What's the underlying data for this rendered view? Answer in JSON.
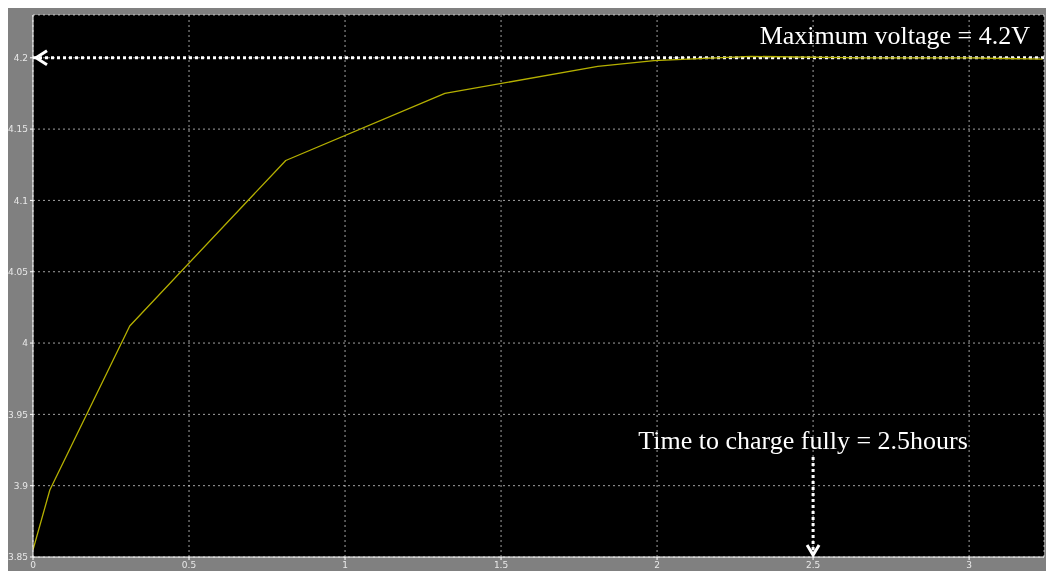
{
  "chart_data": {
    "type": "line",
    "x": [
      0,
      0.054,
      0.31,
      0.81,
      1.32,
      1.81,
      1.99,
      2.3,
      2.66,
      3.0,
      3.235
    ],
    "series": [
      {
        "color": "#b5b000",
        "values": [
          3.855,
          3.897,
          4.012,
          4.128,
          4.175,
          4.194,
          4.198,
          4.201,
          4.2,
          4.2,
          4.199
        ]
      }
    ],
    "xlim": [
      0,
      3.24
    ],
    "xticks": [
      0,
      0.5,
      1,
      1.5,
      2,
      2.5,
      3
    ],
    "ylim": [
      3.85,
      4.23
    ],
    "yticks": [
      3.85,
      3.9,
      3.95,
      4,
      4.05,
      4.1,
      4.15,
      4.2
    ],
    "grid": true,
    "marker": "none",
    "line_style": "solid",
    "legend": false,
    "ref_lines": [
      {
        "axis": "y",
        "value": 4.2,
        "label": "Maximum voltage = 4.2V",
        "color": "#ffffff",
        "line_style": "dotted"
      },
      {
        "axis": "x",
        "value": 2.5,
        "label": "Time to charge fully = 2.5hours",
        "color": "#ffffff",
        "line_style": "dotted"
      }
    ]
  }
}
